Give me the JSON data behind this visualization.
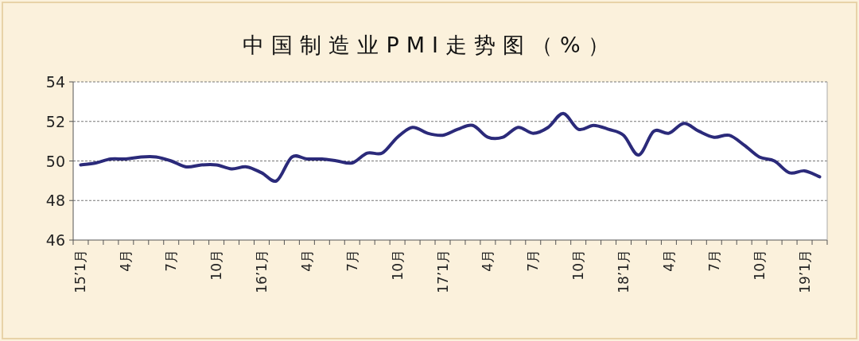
{
  "chart_data": {
    "type": "line",
    "title": "中国制造业PMI走势图（%）",
    "categories": [
      "15’1月",
      null,
      null,
      "4月",
      null,
      null,
      "7月",
      null,
      null,
      "10月",
      null,
      null,
      "16’1月",
      null,
      null,
      "4月",
      null,
      null,
      "7月",
      null,
      null,
      "10月",
      null,
      null,
      "17’1月",
      null,
      null,
      "4月",
      null,
      null,
      "7月",
      null,
      null,
      "10月",
      null,
      null,
      "18’1月",
      null,
      null,
      "4月",
      null,
      null,
      "7月",
      null,
      null,
      "10月",
      null,
      null,
      "19’1月",
      null
    ],
    "series": [
      {
        "color": "#2b2a7a",
        "values": [
          49.8,
          49.9,
          50.1,
          50.1,
          50.2,
          50.2,
          50.0,
          49.7,
          49.8,
          49.8,
          49.6,
          49.7,
          49.4,
          49.0,
          50.2,
          50.1,
          50.1,
          50.0,
          49.9,
          50.4,
          50.4,
          51.2,
          51.7,
          51.4,
          51.3,
          51.6,
          51.8,
          51.2,
          51.2,
          51.7,
          51.4,
          51.7,
          52.4,
          51.6,
          51.8,
          51.6,
          51.3,
          50.3,
          51.5,
          51.4,
          51.9,
          51.5,
          51.2,
          51.3,
          50.8,
          50.2,
          50.0,
          49.4,
          49.5,
          49.2
        ]
      }
    ],
    "ylim": [
      46,
      54
    ],
    "yticks": [
      46,
      48,
      50,
      52,
      54
    ],
    "grid": "y",
    "marker": "none",
    "line_style": "solid"
  }
}
